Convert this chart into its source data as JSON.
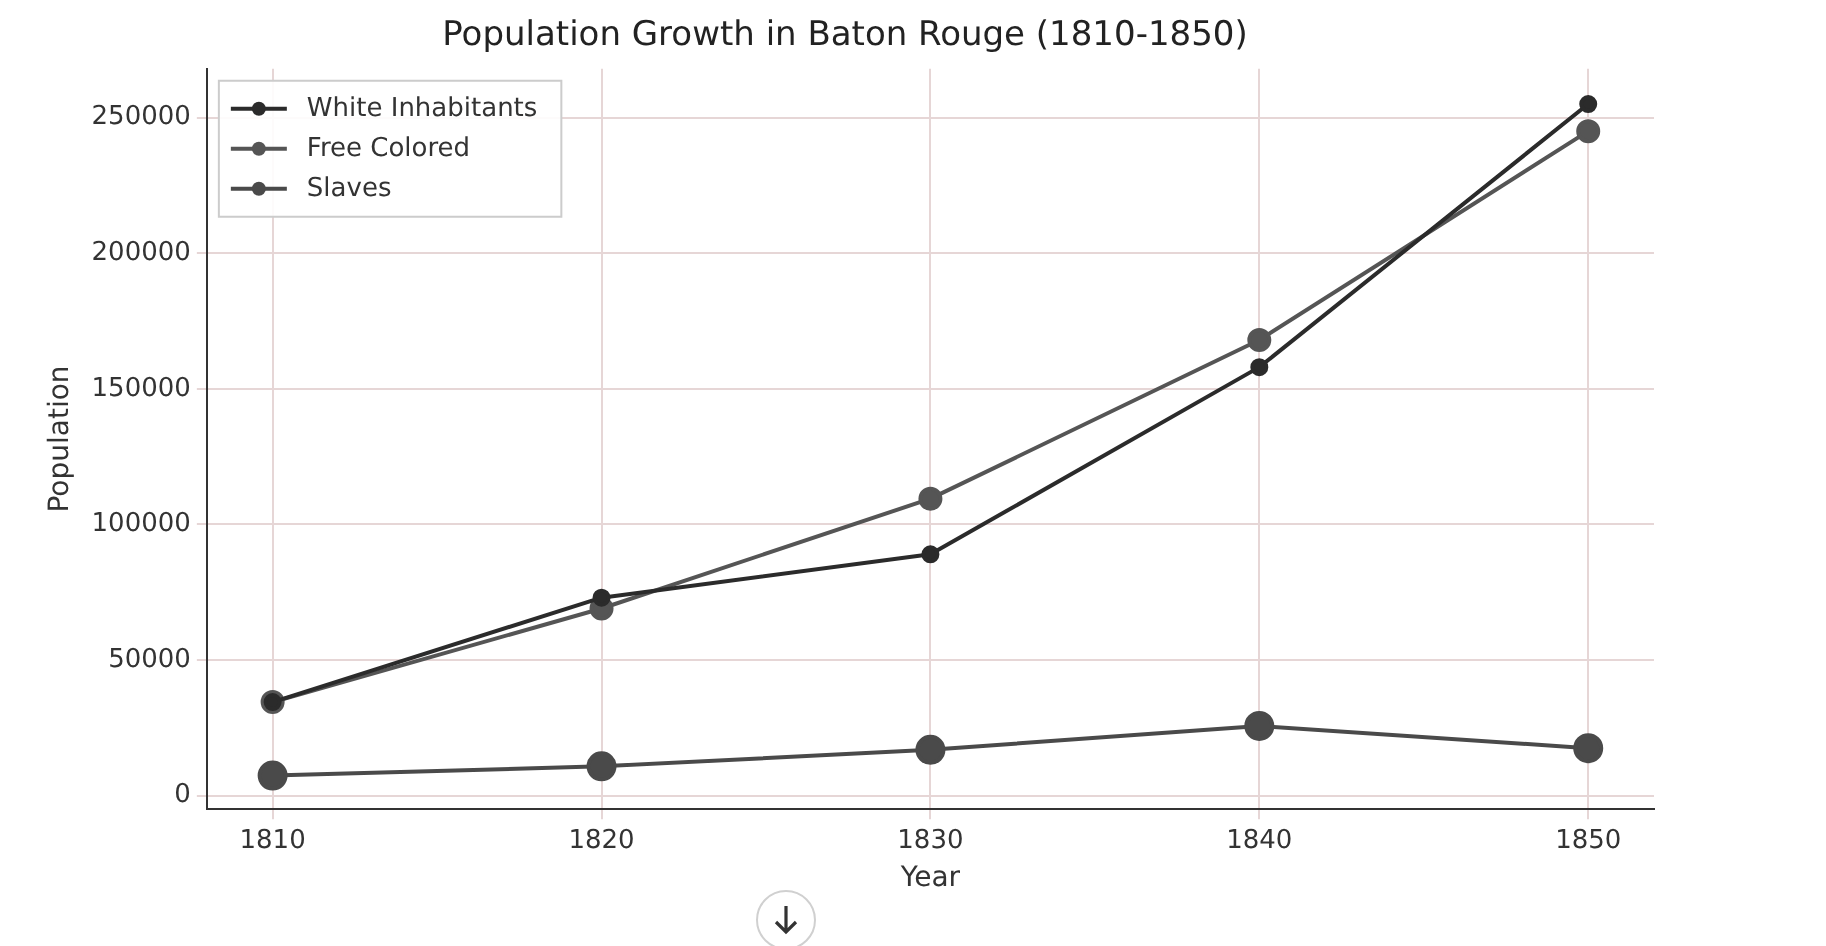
{
  "chart_data": {
    "type": "line",
    "title": "Population Growth in Baton Rouge (1810-1850)",
    "xlabel": "Year",
    "ylabel": "Population",
    "x": [
      1810,
      1820,
      1830,
      1840,
      1850
    ],
    "series": [
      {
        "name": "White Inhabitants",
        "color": "#2b2b2b",
        "values": [
          34500,
          73000,
          89000,
          158000,
          255000
        ]
      },
      {
        "name": "Free Colored",
        "color": "#555555",
        "values": [
          34500,
          69000,
          109500,
          168000,
          245000
        ]
      },
      {
        "name": "Slaves",
        "color": "#4a4a4a",
        "values": [
          7400,
          10800,
          16900,
          25700,
          17500
        ]
      }
    ],
    "xlim": [
      1808,
      1852
    ],
    "xticks": [
      1810,
      1820,
      1830,
      1840,
      1850
    ],
    "ylim": [
      -5000,
      268000
    ],
    "yticks": [
      0,
      50000,
      100000,
      150000,
      200000,
      250000
    ],
    "grid": true,
    "legend": "top left",
    "marker": "circle",
    "line_style": "solid"
  }
}
